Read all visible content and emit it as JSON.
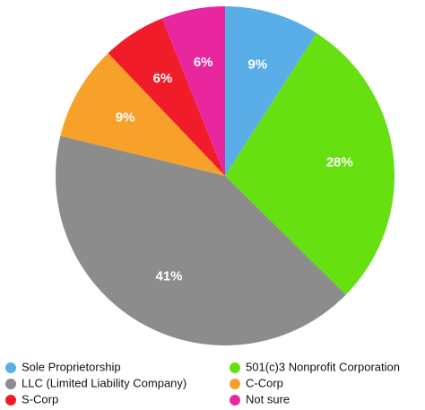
{
  "chart_data": {
    "type": "pie",
    "categories": [
      "Sole Proprietorship",
      "501(c)3 Nonprofit Corporation",
      "LLC (Limited Liability Company)",
      "C-Corp",
      "S-Corp",
      "Not sure"
    ],
    "values": [
      9,
      28,
      41,
      9,
      6,
      6
    ],
    "value_labels": [
      "9%",
      "28%",
      "41%",
      "9%",
      "6%",
      "6%"
    ],
    "colors": [
      "#5aaee8",
      "#66e011",
      "#8c8c8c",
      "#f7a12a",
      "#f01c2a",
      "#e8279e"
    ]
  }
}
